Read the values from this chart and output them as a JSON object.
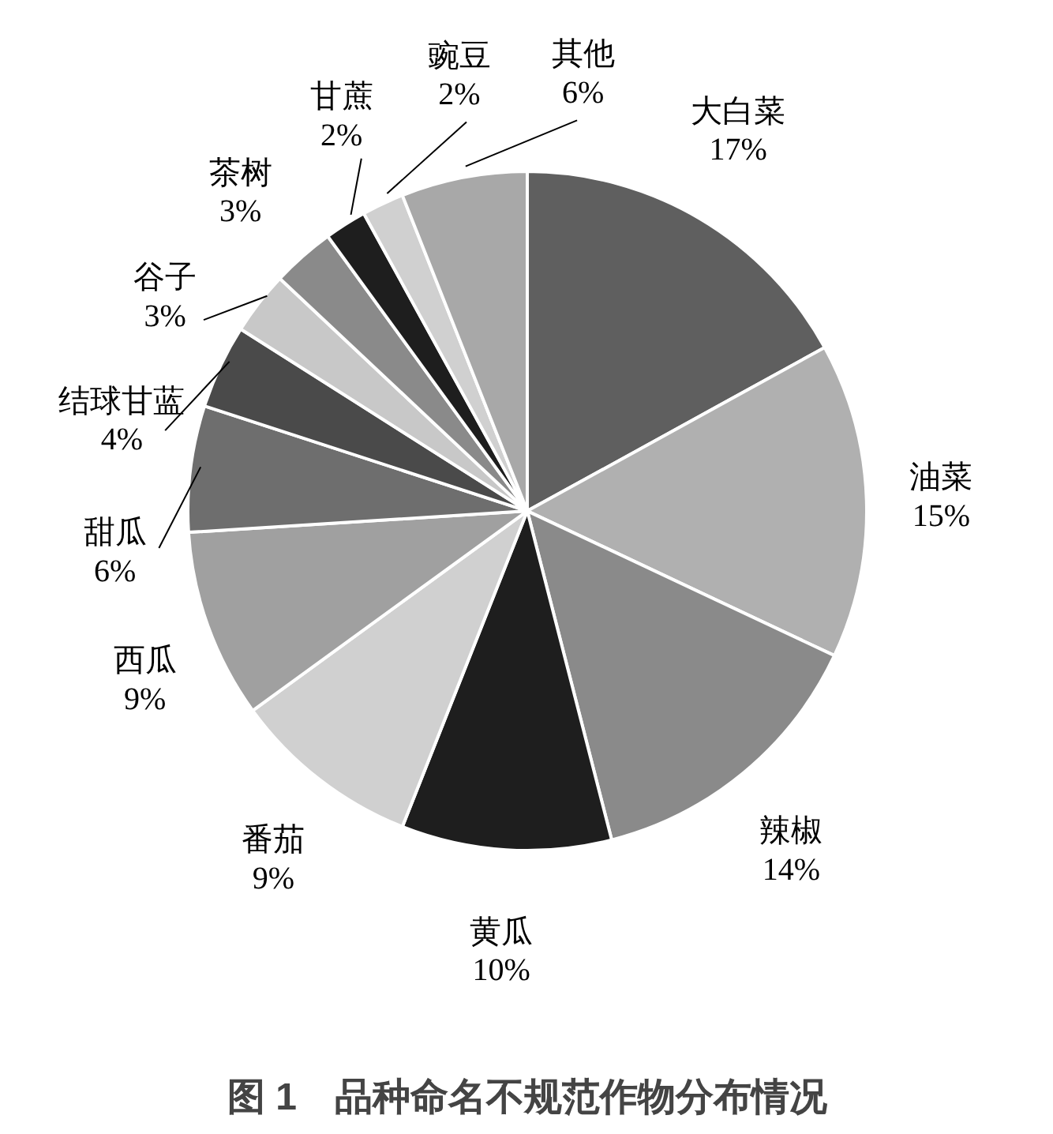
{
  "chart_data": {
    "type": "pie",
    "title": "图 1　品种命名不规范作物分布情况",
    "categories": [
      "大白菜",
      "油菜",
      "辣椒",
      "黄瓜",
      "番茄",
      "西瓜",
      "甜瓜",
      "结球甘蓝",
      "谷子",
      "茶树",
      "甘蔗",
      "豌豆",
      "其他"
    ],
    "values": [
      17,
      15,
      14,
      10,
      9,
      9,
      6,
      4,
      3,
      3,
      2,
      2,
      6
    ],
    "colors": [
      "#5f5f5f",
      "#b0b0b0",
      "#8a8a8a",
      "#1e1e1e",
      "#d0d0d0",
      "#a0a0a0",
      "#6e6e6e",
      "#4a4a4a",
      "#c8c8c8",
      "#8a8a8a",
      "#1e1e1e",
      "#d0d0d0",
      "#a8a8a8"
    ],
    "value_labels": [
      "17%",
      "15%",
      "14%",
      "10%",
      "9%",
      "9%",
      "6%",
      "4%",
      "3%",
      "3%",
      "2%",
      "2%",
      "6%"
    ]
  }
}
